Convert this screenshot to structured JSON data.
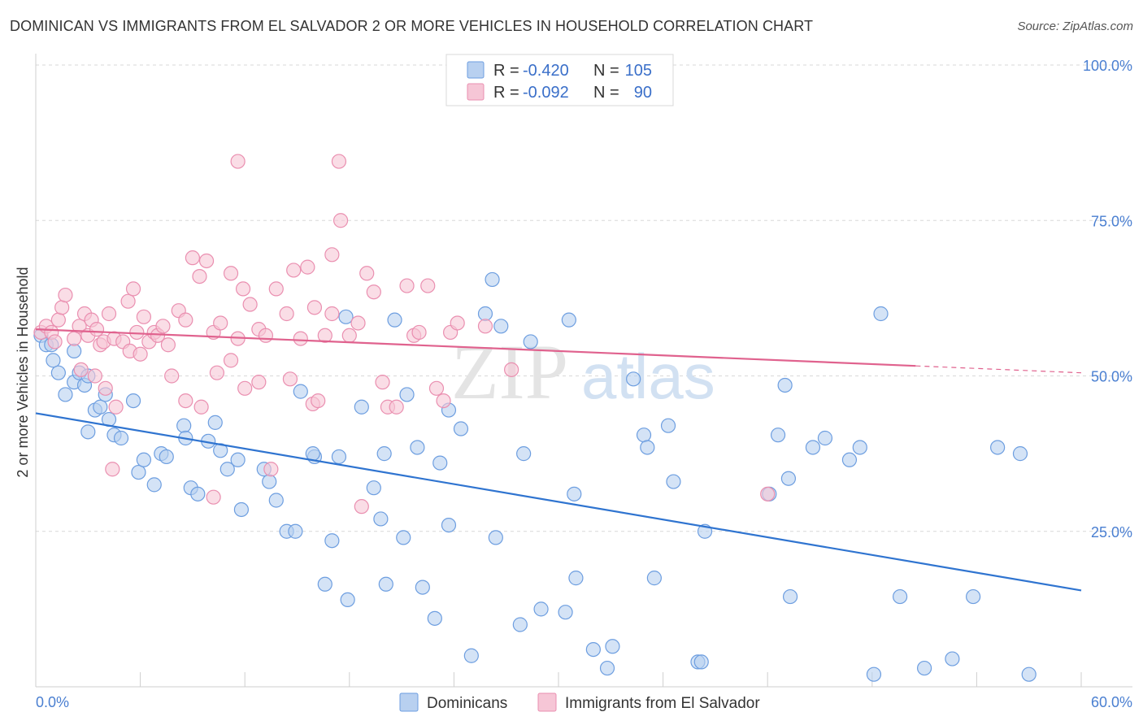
{
  "title": "DOMINICAN VS IMMIGRANTS FROM EL SALVADOR 2 OR MORE VEHICLES IN HOUSEHOLD CORRELATION CHART",
  "source": "Source: ZipAtlas.com",
  "watermark": {
    "zip": "ZIP",
    "atlas": "atlas"
  },
  "colors": {
    "blue_fill": "#b8d0f0",
    "blue_stroke": "#6d9ee0",
    "blue_line": "#2f74d0",
    "pink_fill": "#f6c6d6",
    "pink_stroke": "#ea8fb0",
    "pink_line": "#e0628e",
    "axis_text": "#4a7fd1",
    "grid": "#d8d8d8"
  },
  "legend": {
    "r_label": "R =",
    "n_label": "N =",
    "series": [
      {
        "r": "-0.420",
        "n": "105"
      },
      {
        "r": "-0.092",
        "n": "90"
      }
    ]
  },
  "bottom_legend": [
    "Dominicans",
    "Immigrants from El Salvador"
  ],
  "chart_data": {
    "type": "scatter",
    "title": "DOMINICAN VS IMMIGRANTS FROM EL SALVADOR 2 OR MORE VEHICLES IN HOUSEHOLD CORRELATION CHART",
    "xlabel": "",
    "ylabel": "2 or more Vehicles in Household",
    "xlim": [
      0,
      60
    ],
    "ylim": [
      0,
      100
    ],
    "x_tick_labels": [
      "0.0%",
      "60.0%"
    ],
    "y_ticks": [
      25,
      50,
      75,
      100
    ],
    "y_tick_labels": [
      "25.0%",
      "50.0%",
      "75.0%",
      "100.0%"
    ],
    "grid": true,
    "series": [
      {
        "name": "Dominicans",
        "r": -0.42,
        "n": 105,
        "trend": {
          "x0": 0,
          "y0": 44.0,
          "x1": 60,
          "y1": 15.5,
          "dashed_from": null
        },
        "points": [
          [
            0.3,
            56.5
          ],
          [
            0.6,
            55.0
          ],
          [
            0.9,
            55.0
          ],
          [
            1.0,
            52.5
          ],
          [
            1.3,
            50.5
          ],
          [
            1.7,
            47.0
          ],
          [
            2.2,
            49.0
          ],
          [
            2.5,
            50.5
          ],
          [
            2.8,
            48.5
          ],
          [
            2.2,
            54.0
          ],
          [
            3.0,
            50.0
          ],
          [
            3.4,
            44.5
          ],
          [
            3.7,
            45.0
          ],
          [
            4.0,
            47.0
          ],
          [
            3.0,
            41.0
          ],
          [
            4.2,
            43.0
          ],
          [
            4.5,
            40.5
          ],
          [
            4.9,
            40.0
          ],
          [
            5.6,
            46.0
          ],
          [
            5.9,
            34.5
          ],
          [
            6.2,
            36.5
          ],
          [
            6.8,
            32.5
          ],
          [
            7.2,
            37.5
          ],
          [
            7.5,
            37.0
          ],
          [
            8.5,
            42.0
          ],
          [
            8.9,
            32.0
          ],
          [
            8.6,
            40.0
          ],
          [
            9.3,
            31.0
          ],
          [
            9.9,
            39.5
          ],
          [
            10.3,
            42.5
          ],
          [
            10.6,
            38.0
          ],
          [
            11.0,
            35.0
          ],
          [
            11.6,
            36.5
          ],
          [
            11.8,
            28.5
          ],
          [
            13.1,
            35.0
          ],
          [
            13.4,
            33.0
          ],
          [
            13.8,
            30.0
          ],
          [
            14.4,
            25.0
          ],
          [
            14.9,
            25.0
          ],
          [
            15.2,
            47.5
          ],
          [
            16.0,
            37.0
          ],
          [
            15.9,
            37.5
          ],
          [
            16.6,
            16.5
          ],
          [
            17.0,
            23.5
          ],
          [
            17.4,
            37.0
          ],
          [
            17.8,
            59.5
          ],
          [
            17.9,
            14.0
          ],
          [
            18.7,
            45.0
          ],
          [
            19.4,
            32.0
          ],
          [
            19.8,
            27.0
          ],
          [
            20.0,
            37.5
          ],
          [
            20.1,
            16.5
          ],
          [
            20.6,
            59.0
          ],
          [
            21.1,
            24.0
          ],
          [
            21.3,
            47.0
          ],
          [
            21.9,
            38.5
          ],
          [
            22.2,
            16.0
          ],
          [
            22.9,
            11.0
          ],
          [
            23.2,
            36.0
          ],
          [
            23.7,
            44.5
          ],
          [
            23.7,
            26.0
          ],
          [
            24.4,
            41.5
          ],
          [
            25.0,
            5.0
          ],
          [
            25.8,
            60.0
          ],
          [
            26.2,
            65.5
          ],
          [
            26.4,
            24.0
          ],
          [
            26.7,
            58.0
          ],
          [
            27.8,
            10.0
          ],
          [
            28.0,
            37.5
          ],
          [
            28.4,
            55.5
          ],
          [
            29.0,
            12.5
          ],
          [
            30.6,
            59.0
          ],
          [
            30.4,
            12.0
          ],
          [
            31.0,
            17.5
          ],
          [
            30.9,
            31.0
          ],
          [
            32.0,
            6.0
          ],
          [
            32.8,
            3.0
          ],
          [
            33.1,
            6.5
          ],
          [
            34.3,
            49.5
          ],
          [
            34.9,
            40.5
          ],
          [
            35.1,
            38.5
          ],
          [
            35.5,
            17.5
          ],
          [
            36.3,
            42.0
          ],
          [
            36.6,
            33.0
          ],
          [
            38.0,
            4.0
          ],
          [
            38.2,
            4.0
          ],
          [
            38.4,
            25.0
          ],
          [
            42.1,
            31.0
          ],
          [
            42.6,
            40.5
          ],
          [
            43.0,
            48.5
          ],
          [
            43.2,
            33.5
          ],
          [
            43.3,
            14.5
          ],
          [
            44.6,
            38.5
          ],
          [
            45.3,
            40.0
          ],
          [
            46.7,
            36.5
          ],
          [
            47.3,
            38.5
          ],
          [
            48.1,
            2.0
          ],
          [
            48.5,
            60.0
          ],
          [
            49.6,
            14.5
          ],
          [
            51.0,
            3.0
          ],
          [
            52.6,
            4.5
          ],
          [
            53.8,
            14.5
          ],
          [
            55.2,
            38.5
          ],
          [
            56.5,
            37.5
          ],
          [
            57.0,
            2.0
          ]
        ]
      },
      {
        "name": "Immigrants from El Salvador",
        "r": -0.092,
        "n": 90,
        "trend": {
          "x0": 0,
          "y0": 57.5,
          "x1": 60,
          "y1": 50.5,
          "dashed_from": 50.5
        },
        "points": [
          [
            0.3,
            57.0
          ],
          [
            0.6,
            58.0
          ],
          [
            0.9,
            57.0
          ],
          [
            1.1,
            55.5
          ],
          [
            1.3,
            59.0
          ],
          [
            1.5,
            61.0
          ],
          [
            1.7,
            63.0
          ],
          [
            2.2,
            56.0
          ],
          [
            2.5,
            58.0
          ],
          [
            2.8,
            60.0
          ],
          [
            3.0,
            56.5
          ],
          [
            3.2,
            59.0
          ],
          [
            3.5,
            57.5
          ],
          [
            3.7,
            55.0
          ],
          [
            3.9,
            55.5
          ],
          [
            4.2,
            60.0
          ],
          [
            4.5,
            56.0
          ],
          [
            5.0,
            55.5
          ],
          [
            5.3,
            62.0
          ],
          [
            5.6,
            64.0
          ],
          [
            5.8,
            57.0
          ],
          [
            6.2,
            59.5
          ],
          [
            6.5,
            55.5
          ],
          [
            6.8,
            57.0
          ],
          [
            7.0,
            56.5
          ],
          [
            7.3,
            58.0
          ],
          [
            7.6,
            55.0
          ],
          [
            8.2,
            60.5
          ],
          [
            8.6,
            59.0
          ],
          [
            9.0,
            69.0
          ],
          [
            9.4,
            66.0
          ],
          [
            9.8,
            68.5
          ],
          [
            10.2,
            57.0
          ],
          [
            10.6,
            58.5
          ],
          [
            11.2,
            66.5
          ],
          [
            11.6,
            56.0
          ],
          [
            11.9,
            64.0
          ],
          [
            12.3,
            61.5
          ],
          [
            12.8,
            57.5
          ],
          [
            13.2,
            56.5
          ],
          [
            13.8,
            64.0
          ],
          [
            14.4,
            60.0
          ],
          [
            14.8,
            67.0
          ],
          [
            15.2,
            56.0
          ],
          [
            15.6,
            67.5
          ],
          [
            16.0,
            61.0
          ],
          [
            16.6,
            56.5
          ],
          [
            17.0,
            60.0
          ],
          [
            17.5,
            75.0
          ],
          [
            18.0,
            56.5
          ],
          [
            18.5,
            58.5
          ],
          [
            19.0,
            66.5
          ],
          [
            19.4,
            63.5
          ],
          [
            19.9,
            49.0
          ],
          [
            20.2,
            45.0
          ],
          [
            20.7,
            45.0
          ],
          [
            21.3,
            64.5
          ],
          [
            21.7,
            56.5
          ],
          [
            22.0,
            57.0
          ],
          [
            22.5,
            64.5
          ],
          [
            23.0,
            48.0
          ],
          [
            23.4,
            46.0
          ],
          [
            23.8,
            57.0
          ],
          [
            11.6,
            84.5
          ],
          [
            17.4,
            84.5
          ],
          [
            17.0,
            69.5
          ],
          [
            4.4,
            35.0
          ],
          [
            10.2,
            30.5
          ],
          [
            13.5,
            35.0
          ],
          [
            18.7,
            29.0
          ],
          [
            2.6,
            51.0
          ],
          [
            3.4,
            50.0
          ],
          [
            4.0,
            48.0
          ],
          [
            4.6,
            45.0
          ],
          [
            5.4,
            54.0
          ],
          [
            6.0,
            53.5
          ],
          [
            7.8,
            50.0
          ],
          [
            8.6,
            46.0
          ],
          [
            9.5,
            45.0
          ],
          [
            10.4,
            50.5
          ],
          [
            11.2,
            52.5
          ],
          [
            12.0,
            48.0
          ],
          [
            12.8,
            49.0
          ],
          [
            14.6,
            49.5
          ],
          [
            15.9,
            45.5
          ],
          [
            16.2,
            46.0
          ],
          [
            24.2,
            58.5
          ],
          [
            25.8,
            58.0
          ],
          [
            27.3,
            51.0
          ],
          [
            42.0,
            31.0
          ]
        ]
      }
    ]
  }
}
